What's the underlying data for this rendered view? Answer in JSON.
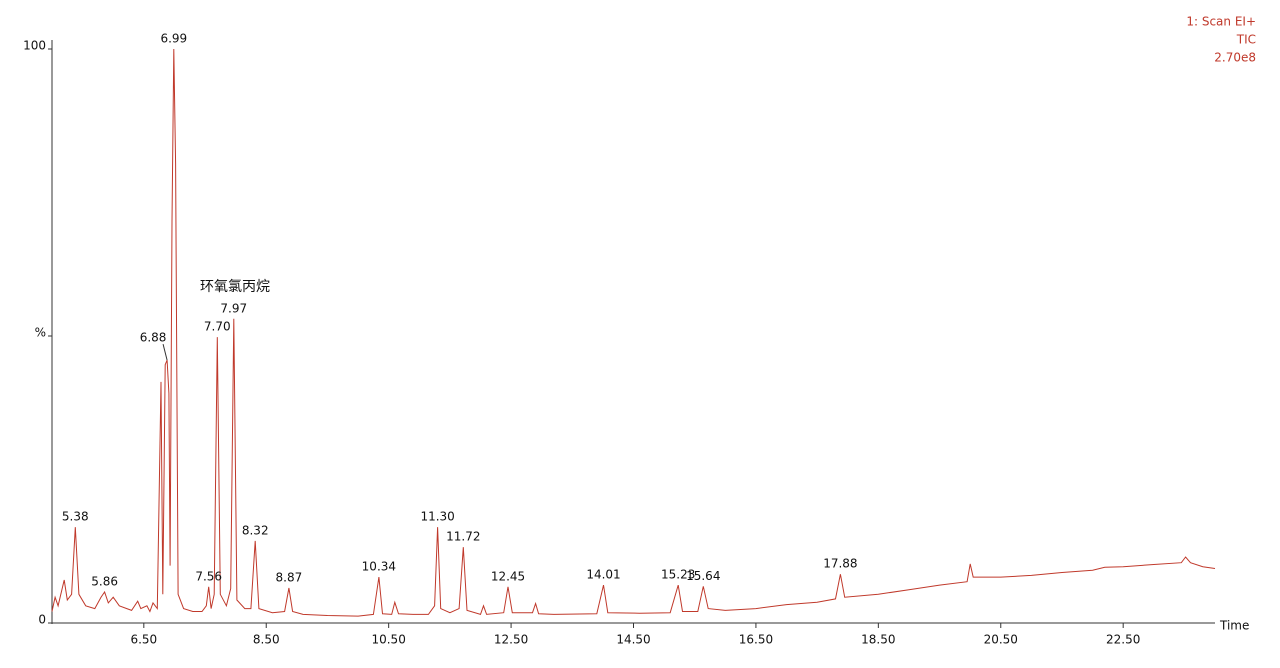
{
  "chart_data": {
    "type": "line",
    "info": [
      "1: Scan EI+",
      "TIC",
      "2.70e8"
    ],
    "xlabel": "Time",
    "annotation": "环氧氯丙烷",
    "color": "#c0392b",
    "xlim": [
      5,
      24
    ],
    "ylim": [
      0,
      100
    ],
    "xticks": [
      {
        "value": 6.5,
        "label": "6.50"
      },
      {
        "value": 8.5,
        "label": "8.50"
      },
      {
        "value": 10.5,
        "label": "10.50"
      },
      {
        "value": 12.5,
        "label": "12.50"
      },
      {
        "value": 14.5,
        "label": "14.50"
      },
      {
        "value": 16.5,
        "label": "16.50"
      },
      {
        "value": 18.5,
        "label": "18.50"
      },
      {
        "value": 20.5,
        "label": "20.50"
      },
      {
        "value": 22.5,
        "label": "22.50"
      }
    ],
    "yticks": [
      0,
      {
        "value": 50,
        "label": "%"
      },
      100
    ],
    "x": [
      5.0,
      5.05,
      5.1,
      5.2,
      5.25,
      5.32,
      5.38,
      5.44,
      5.55,
      5.7,
      5.8,
      5.86,
      5.92,
      6.0,
      6.1,
      6.3,
      6.4,
      6.45,
      6.55,
      6.6,
      6.65,
      6.72,
      6.78,
      6.81,
      6.85,
      6.88,
      6.91,
      6.93,
      6.96,
      6.99,
      7.02,
      7.06,
      7.15,
      7.3,
      7.45,
      7.52,
      7.56,
      7.6,
      7.65,
      7.7,
      7.75,
      7.85,
      7.92,
      7.97,
      8.02,
      8.15,
      8.25,
      8.32,
      8.38,
      8.6,
      8.8,
      8.87,
      8.93,
      9.1,
      9.5,
      10.0,
      10.25,
      10.34,
      10.4,
      10.55,
      10.6,
      10.66,
      10.9,
      11.15,
      11.25,
      11.3,
      11.35,
      11.5,
      11.65,
      11.72,
      11.78,
      12.0,
      12.05,
      12.1,
      12.38,
      12.45,
      12.52,
      12.85,
      12.9,
      12.95,
      13.2,
      13.9,
      14.01,
      14.08,
      14.6,
      15.1,
      15.23,
      15.3,
      15.55,
      15.64,
      15.72,
      16.0,
      16.5,
      17.0,
      17.5,
      17.8,
      17.88,
      17.95,
      18.5,
      19.0,
      19.5,
      19.95,
      20.0,
      20.05,
      20.5,
      21.0,
      21.5,
      22.0,
      22.2,
      22.5,
      23.0,
      23.45,
      23.52,
      23.6,
      23.8,
      24.0
    ],
    "values": [
      2,
      4.5,
      3,
      7.5,
      4,
      5,
      16.7,
      5,
      3,
      2.5,
      4.5,
      5.4,
      3.5,
      4.5,
      3,
      2.2,
      3.8,
      2.5,
      3,
      2,
      3.5,
      2.5,
      42,
      5,
      45,
      45.8,
      40,
      10,
      70,
      100,
      80,
      5,
      2.5,
      2,
      2,
      3,
      6.3,
      2.5,
      5,
      49.8,
      5,
      3,
      6,
      53,
      4,
      2.5,
      2.5,
      14.3,
      2.5,
      1.8,
      2,
      6.1,
      2,
      1.5,
      1.3,
      1.2,
      1.5,
      8,
      1.6,
      1.5,
      3.6,
      1.6,
      1.5,
      1.5,
      3,
      16.7,
      2.5,
      1.8,
      2.5,
      13.2,
      2.2,
      1.5,
      3,
      1.5,
      1.8,
      6.3,
      1.8,
      1.8,
      3.4,
      1.6,
      1.5,
      1.6,
      6.6,
      1.8,
      1.7,
      1.8,
      6.6,
      2,
      2,
      6.4,
      2.5,
      2.2,
      2.5,
      3.2,
      3.6,
      4.2,
      8.5,
      4.5,
      5,
      5.8,
      6.6,
      7.2,
      10.3,
      8,
      8,
      8.3,
      8.8,
      9.2,
      9.7,
      9.8,
      10.2,
      10.5,
      11.5,
      10.5,
      9.8,
      9.5
    ],
    "peaks": {
      "labels": [
        "5.38",
        "5.86",
        "6.88",
        "6.99",
        "7.56",
        "7.70",
        "7.97",
        "8.32",
        "8.87",
        "10.34",
        "11.30",
        "11.72",
        "12.45",
        "14.01",
        "15.23",
        "15.64",
        "17.88"
      ],
      "x": [
        5.38,
        5.86,
        6.88,
        6.99,
        7.56,
        7.7,
        7.97,
        8.32,
        8.87,
        10.34,
        11.3,
        11.72,
        12.45,
        14.01,
        15.23,
        15.64,
        17.88
      ],
      "y": [
        16.7,
        5.4,
        45.8,
        100,
        6.3,
        49.8,
        53,
        14.3,
        6.1,
        8,
        16.7,
        13.2,
        6.3,
        6.6,
        6.6,
        6.4,
        8.5
      ]
    }
  }
}
